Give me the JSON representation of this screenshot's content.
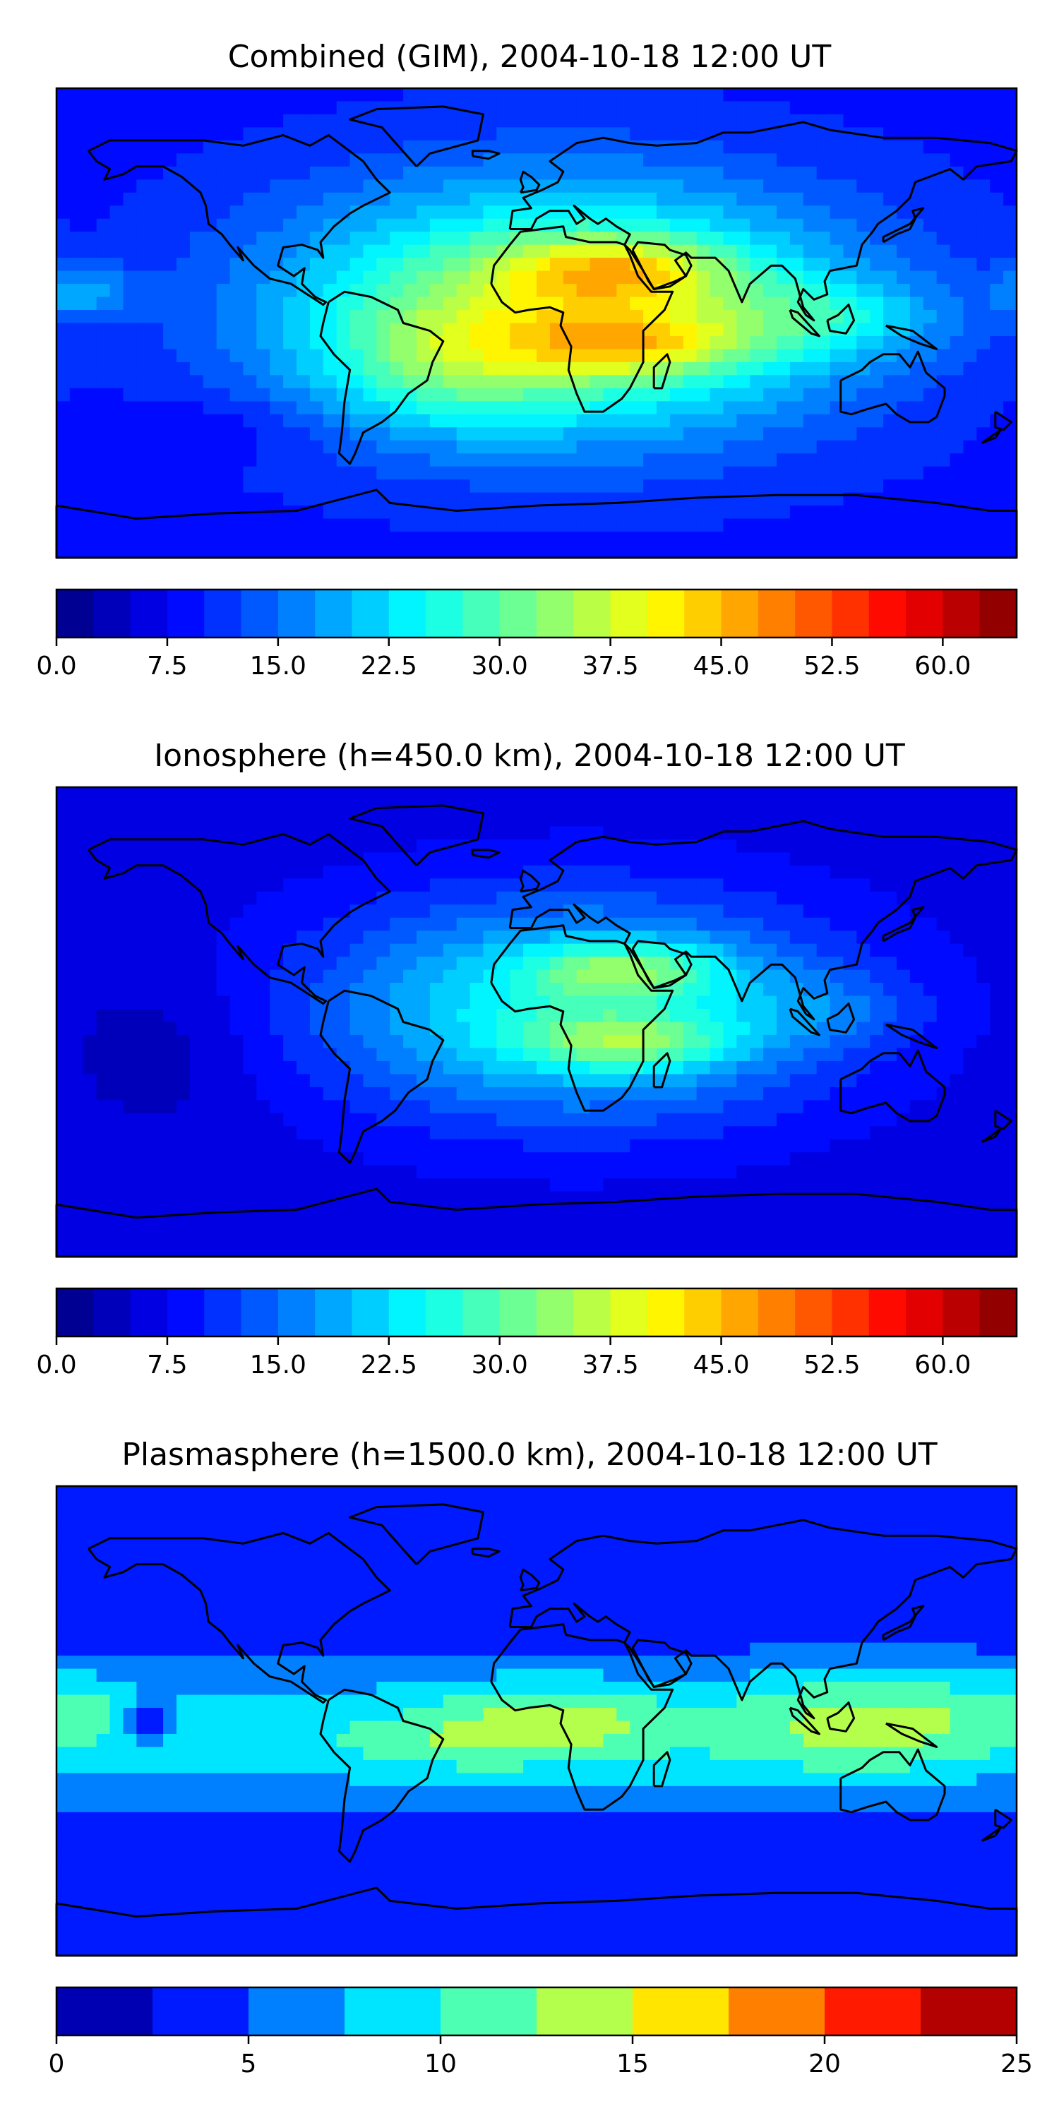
{
  "panels": [
    {
      "title": "Combined (GIM), 2004-10-18 12:00 UT",
      "colorbar": {
        "min": 0,
        "max": 65,
        "levels": 26,
        "tick_values": [
          0,
          7.5,
          15,
          22.5,
          30,
          37.5,
          45,
          52.5,
          60
        ],
        "tick_labels": [
          "0.0",
          "7.5",
          "15.0",
          "22.5",
          "30.0",
          "37.5",
          "45.0",
          "52.5",
          "60.0"
        ]
      },
      "field": {
        "background": 9,
        "blobs": [
          {
            "lon": 10,
            "lat": 5,
            "rlon": 105,
            "rlat": 48,
            "amp": 27
          },
          {
            "lon": 30,
            "lat": 20,
            "rlon": 40,
            "rlat": 12,
            "amp": 14
          },
          {
            "lon": 35,
            "lat": -8,
            "rlon": 42,
            "rlat": 12,
            "amp": 13
          },
          {
            "lon": 110,
            "lat": 2,
            "rlon": 45,
            "rlat": 16,
            "amp": 8
          },
          {
            "lon": -35,
            "lat": -15,
            "rlon": 45,
            "rlat": 25,
            "amp": 8
          },
          {
            "lon": -170,
            "lat": 12,
            "rlon": 18,
            "rlat": 10,
            "amp": 9
          },
          {
            "lon": -120,
            "lat": -40,
            "rlon": 40,
            "rlat": 12,
            "amp": -3
          }
        ]
      }
    },
    {
      "title": "Ionosphere  (h=450.0 km), 2004-10-18 12:00 UT",
      "colorbar": {
        "min": 0,
        "max": 65,
        "levels": 26,
        "tick_values": [
          0,
          7.5,
          15,
          22.5,
          30,
          37.5,
          45,
          52.5,
          60
        ],
        "tick_labels": [
          "0.0",
          "7.5",
          "15.0",
          "22.5",
          "30.0",
          "37.5",
          "45.0",
          "52.5",
          "60.0"
        ]
      },
      "field": {
        "background": 6,
        "blobs": [
          {
            "lon": 15,
            "lat": 5,
            "rlon": 95,
            "rlat": 42,
            "amp": 20
          },
          {
            "lon": 35,
            "lat": 20,
            "rlon": 35,
            "rlat": 10,
            "amp": 12
          },
          {
            "lon": 35,
            "lat": -8,
            "rlon": 38,
            "rlat": 10,
            "amp": 12
          },
          {
            "lon": 110,
            "lat": 5,
            "rlon": 40,
            "rlat": 14,
            "amp": 4
          },
          {
            "lon": -140,
            "lat": -10,
            "rlon": 35,
            "rlat": 30,
            "amp": -3
          }
        ]
      }
    },
    {
      "title": "Plasmasphere (h=1500.0 km), 2004-10-18 12:00 UT",
      "colorbar": {
        "min": 0,
        "max": 25,
        "levels": 10,
        "tick_values": [
          0,
          5,
          10,
          15,
          20,
          25
        ],
        "tick_labels": [
          "0",
          "5",
          "10",
          "15",
          "20",
          "25"
        ]
      },
      "field": {
        "background": 2.5,
        "blobs": [
          {
            "lon": 0,
            "lat": -5,
            "rlon": 360,
            "rlat": 30,
            "amp": 7
          },
          {
            "lon": 5,
            "lat": 0,
            "rlon": 40,
            "rlat": 15,
            "amp": 5
          },
          {
            "lon": 125,
            "lat": 0,
            "rlon": 50,
            "rlat": 22,
            "amp": 5
          },
          {
            "lon": -175,
            "lat": 5,
            "rlon": 30,
            "rlat": 15,
            "amp": 3
          },
          {
            "lon": -40,
            "lat": -10,
            "rlon": 35,
            "rlat": 10,
            "amp": 2
          },
          {
            "lon": -145,
            "lat": 0,
            "rlon": 10,
            "rlat": 8,
            "amp": -6
          }
        ]
      }
    }
  ],
  "colors": {
    "frame": "#000000",
    "coastline": "#000000",
    "jet": [
      "#00007f",
      "#0000ff",
      "#007fff",
      "#00ffff",
      "#7fff7f",
      "#ffff00",
      "#ff7f00",
      "#ff0000",
      "#7f0000"
    ]
  }
}
